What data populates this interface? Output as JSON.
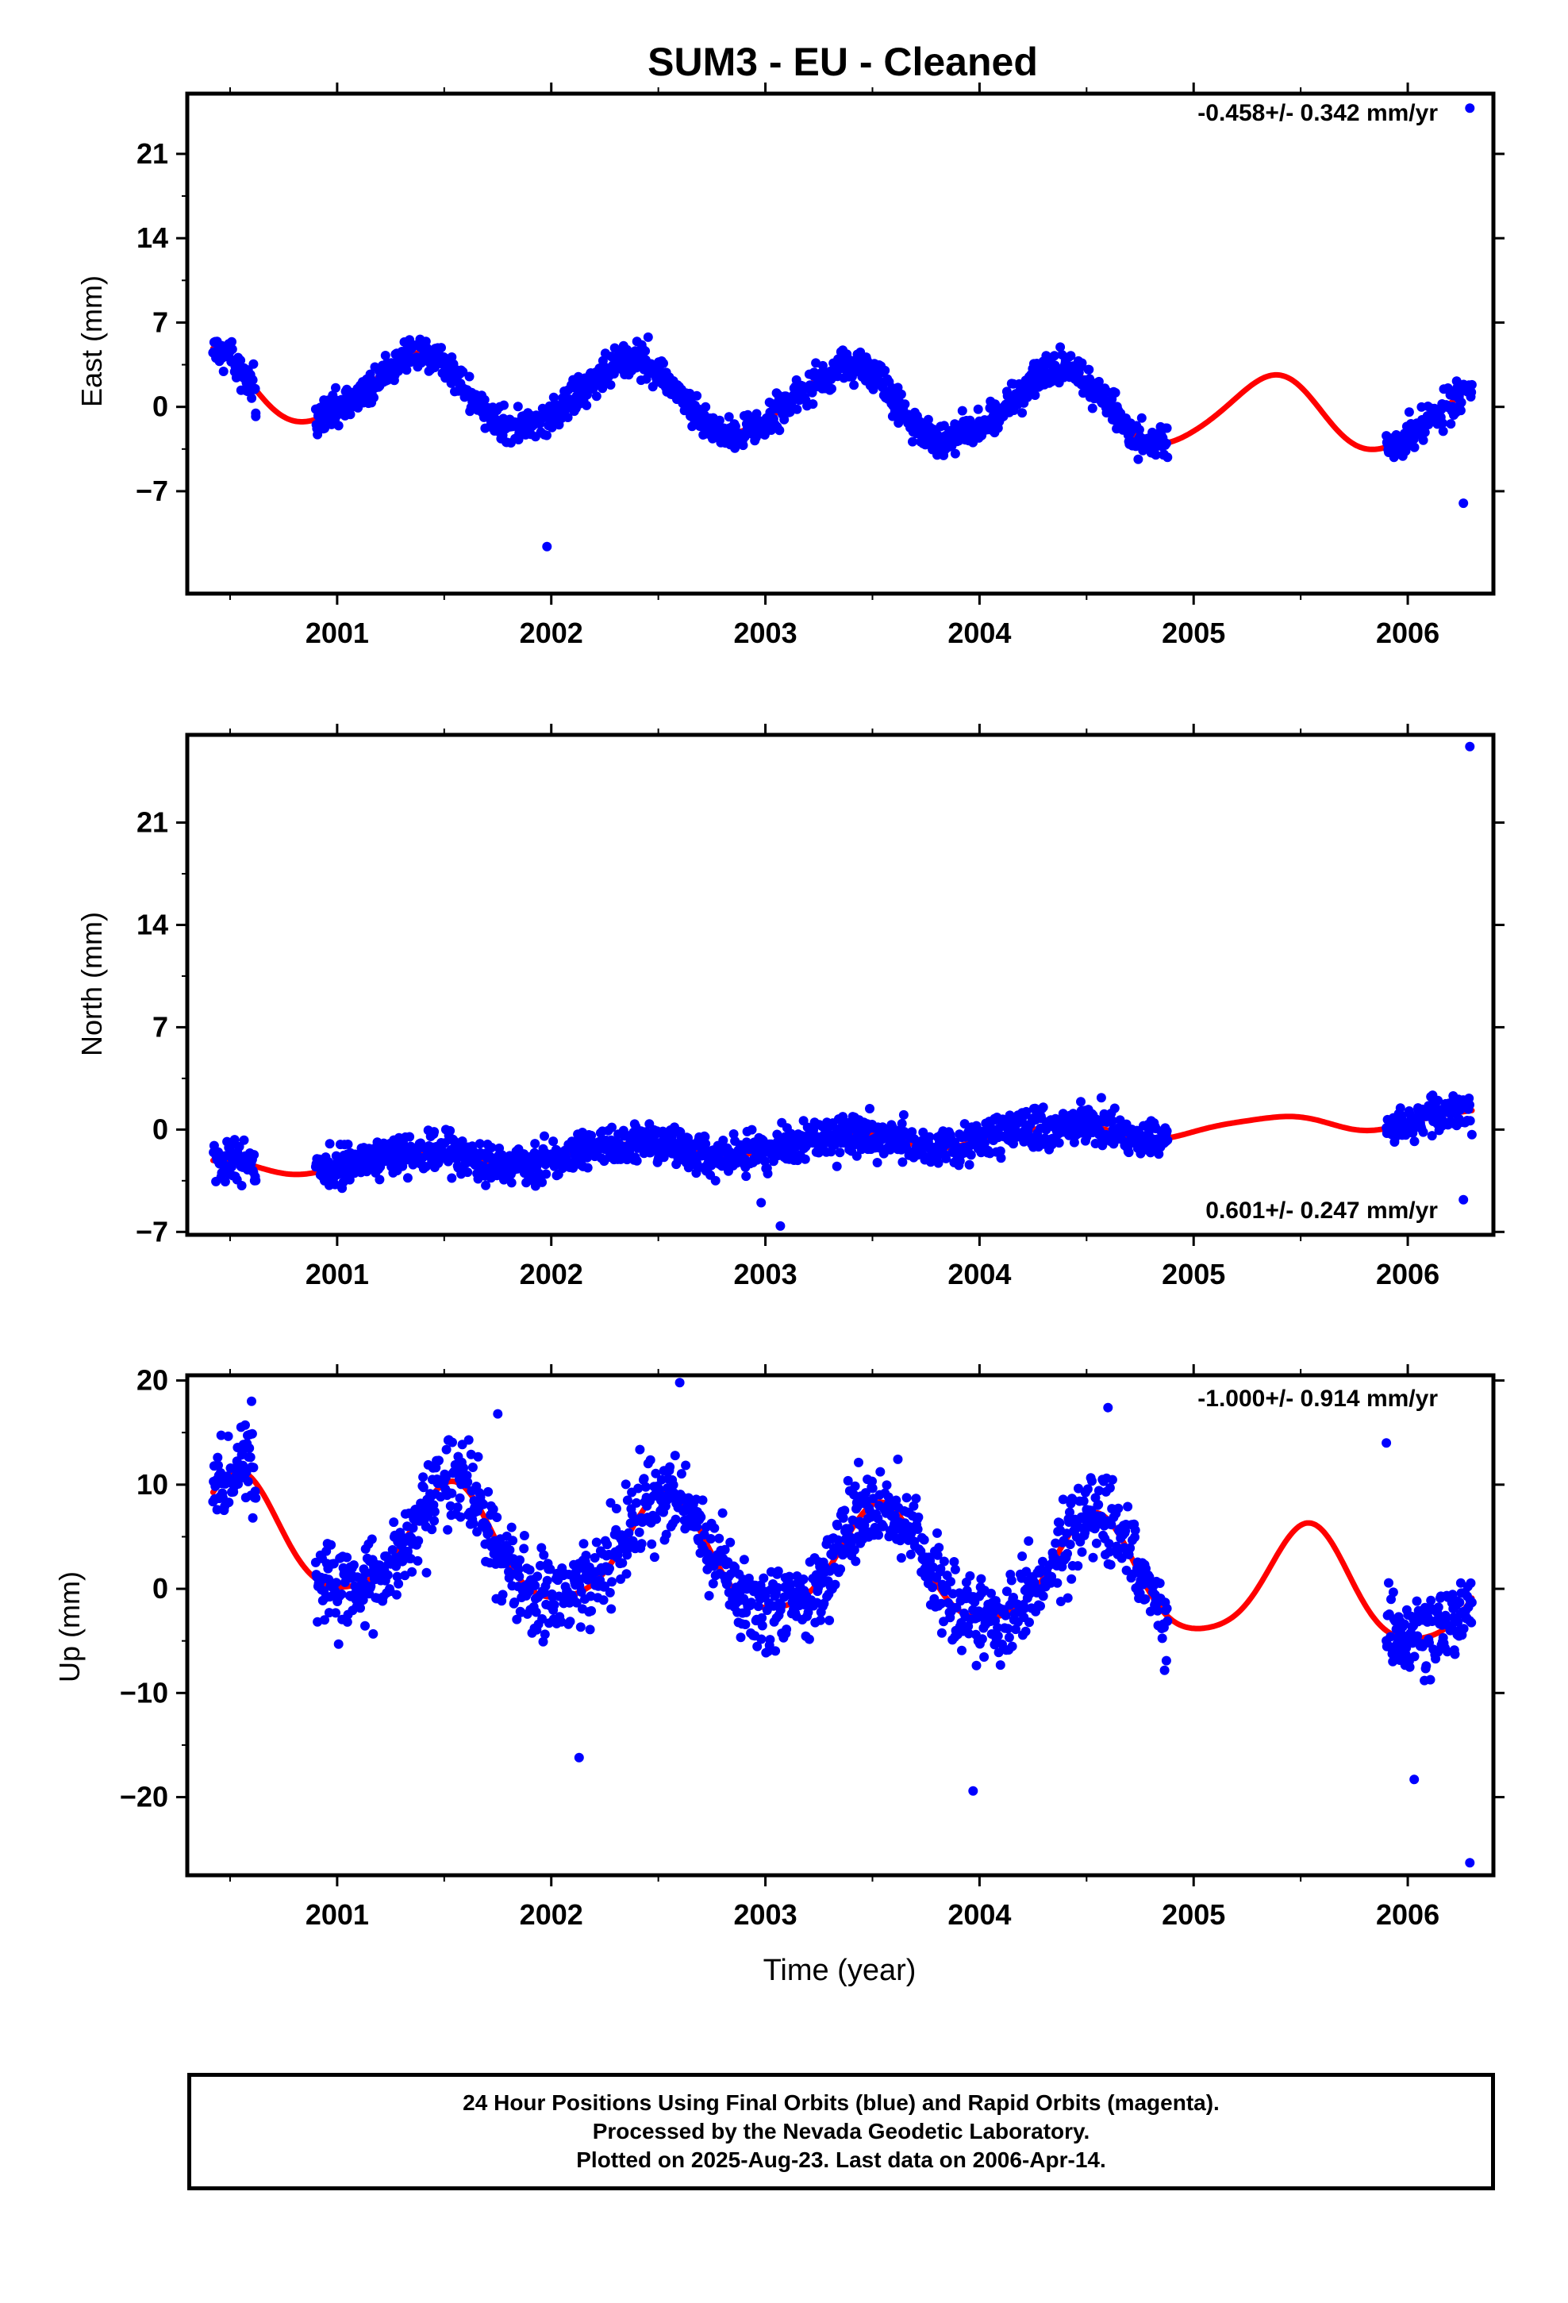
{
  "colors": {
    "points": "#0000ff",
    "fit": "#ff0000",
    "frame": "#000000"
  },
  "chart_data": [
    {
      "type": "scatter",
      "title": "SUM3  - EU - Cleaned",
      "ylabel": "East (mm)",
      "xlabel": "",
      "rate": "-0.458+/- 0.342 mm/yr",
      "xlim": [
        2000.3,
        2006.4
      ],
      "ylim": [
        -15.5,
        26
      ],
      "yticks": [
        -7,
        0,
        7,
        14,
        21
      ],
      "yticklabels": [
        "−7",
        "0",
        "7",
        "14",
        "21"
      ],
      "xticks": [
        2001,
        2002,
        2003,
        2004,
        2005,
        2006
      ],
      "xticklabels": [
        "2001",
        "2002",
        "2003",
        "2004",
        "2005",
        "2006"
      ],
      "grid": false,
      "model": {
        "offset": 0.6,
        "rate": -0.458,
        "c1": -1.95,
        "s1": 2.2,
        "c2": 0.25,
        "s2": -0.2
      },
      "data_segments": [
        [
          2000.42,
          2000.62
        ],
        [
          2000.9,
          2004.88
        ],
        [
          2005.9,
          2006.3
        ]
      ],
      "noise": 1.3,
      "outliers": [
        [
          2006.29,
          24.8
        ],
        [
          2001.98,
          -11.6
        ],
        [
          2006.26,
          -8.0
        ],
        [
          2000.62,
          -0.8
        ]
      ]
    },
    {
      "type": "scatter",
      "title": "",
      "ylabel": "North (mm)",
      "xlabel": "",
      "rate": "0.601+/- 0.247 mm/yr",
      "xlim": [
        2000.3,
        2006.4
      ],
      "ylim": [
        -7.2,
        27
      ],
      "yticks": [
        -7,
        0,
        7,
        14,
        21
      ],
      "yticklabels": [
        "−7",
        "0",
        "7",
        "14",
        "21"
      ],
      "xticks": [
        2001,
        2002,
        2003,
        2004,
        2005,
        2006
      ],
      "xticklabels": [
        "2001",
        "2002",
        "2003",
        "2004",
        "2005",
        "2006"
      ],
      "grid": false,
      "model": {
        "offset": -1.1,
        "rate": 0.601,
        "c1": -0.35,
        "s1": 0.45,
        "c2": 0.1,
        "s2": 0.05
      },
      "data_segments": [
        [
          2000.42,
          2000.62
        ],
        [
          2000.9,
          2004.88
        ],
        [
          2005.9,
          2006.3
        ]
      ],
      "noise": 1.2,
      "outliers": [
        [
          2006.29,
          26.2
        ],
        [
          2006.26,
          -4.8
        ],
        [
          2003.07,
          -6.6
        ],
        [
          2002.98,
          -5.0
        ]
      ]
    },
    {
      "type": "scatter",
      "title": "",
      "ylabel": "Up (mm)",
      "xlabel": "Time (year)",
      "rate": "-1.000+/- 0.914 mm/yr",
      "xlim": [
        2000.3,
        2006.4
      ],
      "ylim": [
        -27.5,
        20.5
      ],
      "yticks": [
        -20,
        -10,
        0,
        10,
        20
      ],
      "yticklabels": [
        "−20",
        "−10",
        "0",
        "10",
        "20"
      ],
      "xticks": [
        2001,
        2002,
        2003,
        2004,
        2005,
        2006
      ],
      "xticklabels": [
        "2001",
        "2002",
        "2003",
        "2004",
        "2005",
        "2006"
      ],
      "grid": false,
      "model": {
        "offset": 2.7,
        "rate": -1.0,
        "c1": -5.2,
        "s1": -1.1,
        "c2": 0.7,
        "s2": 0.5
      },
      "data_segments": [
        [
          2000.42,
          2000.62
        ],
        [
          2000.9,
          2004.88
        ],
        [
          2005.9,
          2006.3
        ]
      ],
      "noise": 3.6,
      "outliers": [
        [
          2006.29,
          -26.3
        ],
        [
          2003.97,
          -19.4
        ],
        [
          2002.6,
          19.8
        ],
        [
          2000.6,
          18.0
        ],
        [
          2001.75,
          16.8
        ],
        [
          2004.6,
          17.4
        ],
        [
          2005.9,
          14.0
        ],
        [
          2006.03,
          -18.3
        ],
        [
          2002.13,
          -16.2
        ]
      ]
    }
  ],
  "footer": {
    "line1": "24 Hour Positions Using Final Orbits (blue) and Rapid Orbits (magenta).",
    "line2": "Processed by the Nevada Geodetic Laboratory.",
    "line3": "Plotted on 2025-Aug-23. Last data on 2006-Apr-14."
  }
}
